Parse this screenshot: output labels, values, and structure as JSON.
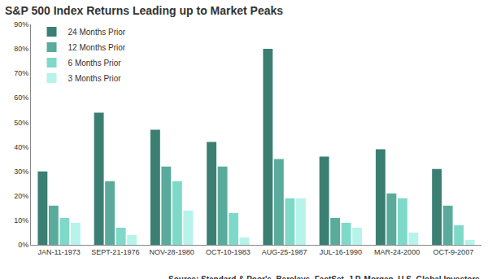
{
  "chart_data": {
    "type": "bar",
    "title": "S&P 500 Index Returns Leading up to Market Peaks",
    "categories": [
      "JAN-11-1973",
      "SEPT-21-1976",
      "NOV-28-1980",
      "OCT-10-1983",
      "AUG-25-1987",
      "JUL-16-1990",
      "MAR-24-2000",
      "OCT-9-2007"
    ],
    "series": [
      {
        "name": "24 Months Prior",
        "color": "#3b7f73",
        "values": [
          30,
          54,
          47,
          42,
          80,
          36,
          39,
          31
        ]
      },
      {
        "name": "12 Months Prior",
        "color": "#5aab9c",
        "values": [
          16,
          26,
          32,
          32,
          35,
          11,
          21,
          16
        ]
      },
      {
        "name": "6 Months Prior",
        "color": "#7fd9c9",
        "values": [
          11,
          7,
          26,
          13,
          19,
          9,
          19,
          8
        ]
      },
      {
        "name": "3 Months Prior",
        "color": "#b6f3eb",
        "values": [
          9,
          4,
          14,
          3,
          19,
          7,
          5,
          2
        ]
      }
    ],
    "ylim": [
      0,
      90
    ],
    "yticks": [
      {
        "value": 0,
        "label": "0%"
      },
      {
        "value": 10,
        "label": "10%"
      },
      {
        "value": 20,
        "label": "20%"
      },
      {
        "value": 30,
        "label": "30%"
      },
      {
        "value": 40,
        "label": "40%"
      },
      {
        "value": 50,
        "label": "50%"
      },
      {
        "value": 60,
        "label": "60%"
      },
      {
        "value": 70,
        "label": "70%"
      },
      {
        "value": 80,
        "label": "80%"
      },
      {
        "value": 90,
        "label": "90%"
      }
    ],
    "grid": false,
    "legend": "top-left",
    "annotations": [
      "Source: Standard & Poor's, Barclays, FactSet, J.P. Morgan, U.S. Global Investors"
    ]
  }
}
